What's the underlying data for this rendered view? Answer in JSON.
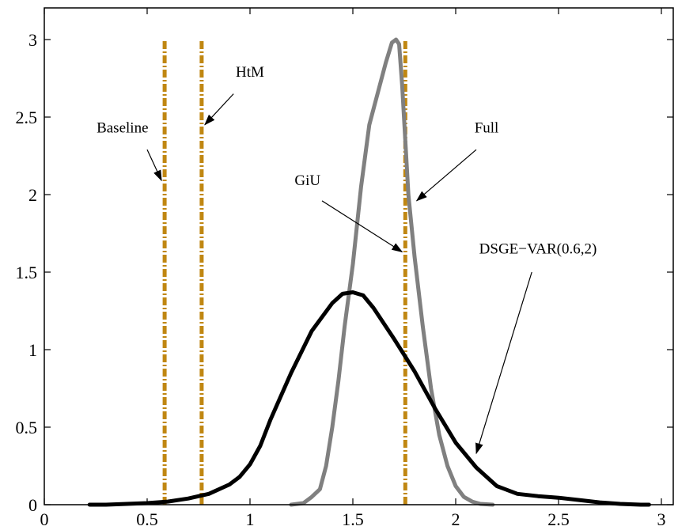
{
  "chart_data": {
    "type": "line",
    "title": "",
    "xlabel": "",
    "ylabel": "",
    "xlim": [
      0,
      3
    ],
    "ylim": [
      0,
      3
    ],
    "xticks": [
      0,
      0.5,
      1,
      1.5,
      2,
      2.5,
      3
    ],
    "yticks": [
      0,
      0.5,
      1,
      1.5,
      2,
      2.5,
      3
    ],
    "xtick_labels": [
      "0",
      "0.5",
      "1",
      "1.5",
      "2",
      "2.5",
      "3"
    ],
    "ytick_labels": [
      "0",
      "0.5",
      "1",
      "1.5",
      "2",
      "2.5",
      "3"
    ],
    "grid": false,
    "series": [
      {
        "name": "Full",
        "color": "#808080",
        "x": [
          1.2,
          1.26,
          1.3,
          1.34,
          1.37,
          1.4,
          1.43,
          1.46,
          1.5,
          1.54,
          1.58,
          1.62,
          1.66,
          1.69,
          1.71,
          1.725,
          1.74,
          1.755,
          1.77,
          1.8,
          1.84,
          1.88,
          1.92,
          1.96,
          2.0,
          2.04,
          2.08,
          2.12,
          2.18
        ],
        "y": [
          0.0,
          0.01,
          0.05,
          0.1,
          0.25,
          0.5,
          0.8,
          1.15,
          1.55,
          2.05,
          2.45,
          2.65,
          2.85,
          2.98,
          3.0,
          2.97,
          2.7,
          2.35,
          2.0,
          1.6,
          1.15,
          0.75,
          0.45,
          0.25,
          0.12,
          0.05,
          0.02,
          0.005,
          0.0
        ]
      },
      {
        "name": "DSGE−VAR(0.6,2)",
        "color": "#000000",
        "x": [
          0.22,
          0.3,
          0.4,
          0.5,
          0.6,
          0.7,
          0.8,
          0.9,
          0.95,
          1.0,
          1.05,
          1.1,
          1.2,
          1.3,
          1.4,
          1.45,
          1.5,
          1.55,
          1.6,
          1.7,
          1.8,
          1.9,
          2.0,
          2.1,
          2.2,
          2.3,
          2.4,
          2.5,
          2.6,
          2.7,
          2.8,
          2.9,
          2.94
        ],
        "y": [
          0.0,
          0.0,
          0.005,
          0.01,
          0.02,
          0.04,
          0.07,
          0.13,
          0.18,
          0.26,
          0.38,
          0.55,
          0.85,
          1.12,
          1.3,
          1.36,
          1.37,
          1.35,
          1.27,
          1.07,
          0.86,
          0.62,
          0.4,
          0.24,
          0.12,
          0.07,
          0.055,
          0.045,
          0.03,
          0.015,
          0.005,
          0.0,
          0.0
        ]
      }
    ],
    "vlines": [
      {
        "name": "Baseline",
        "x": 0.585,
        "color": "#c08712"
      },
      {
        "name": "HtM",
        "x": 0.765,
        "color": "#c08712"
      },
      {
        "name": "GiU",
        "x": 1.755,
        "color": "#c08712"
      }
    ],
    "annotations": [
      {
        "id": "baseline",
        "text": "Baseline",
        "text_x": 0.38,
        "text_y": 2.4,
        "arrow_from": [
          0.5,
          2.29
        ],
        "arrow_to": [
          0.57,
          2.09
        ]
      },
      {
        "id": "htm",
        "text": "HtM",
        "text_x": 1.0,
        "text_y": 2.76,
        "arrow_from": [
          0.92,
          2.65
        ],
        "arrow_to": [
          0.78,
          2.45
        ]
      },
      {
        "id": "giu",
        "text": "GiU",
        "text_x": 1.28,
        "text_y": 2.06,
        "arrow_from": [
          1.35,
          1.96
        ],
        "arrow_to": [
          1.74,
          1.63
        ]
      },
      {
        "id": "full",
        "text": "Full",
        "text_x": 2.15,
        "text_y": 2.4,
        "arrow_from": [
          2.1,
          2.29
        ],
        "arrow_to": [
          1.81,
          1.96
        ]
      },
      {
        "id": "dsge-var",
        "text": "DSGE−VAR(0.6,2)",
        "text_x": 2.4,
        "text_y": 1.62,
        "arrow_from": [
          2.37,
          1.5
        ],
        "arrow_to": [
          2.1,
          0.33
        ]
      }
    ]
  }
}
